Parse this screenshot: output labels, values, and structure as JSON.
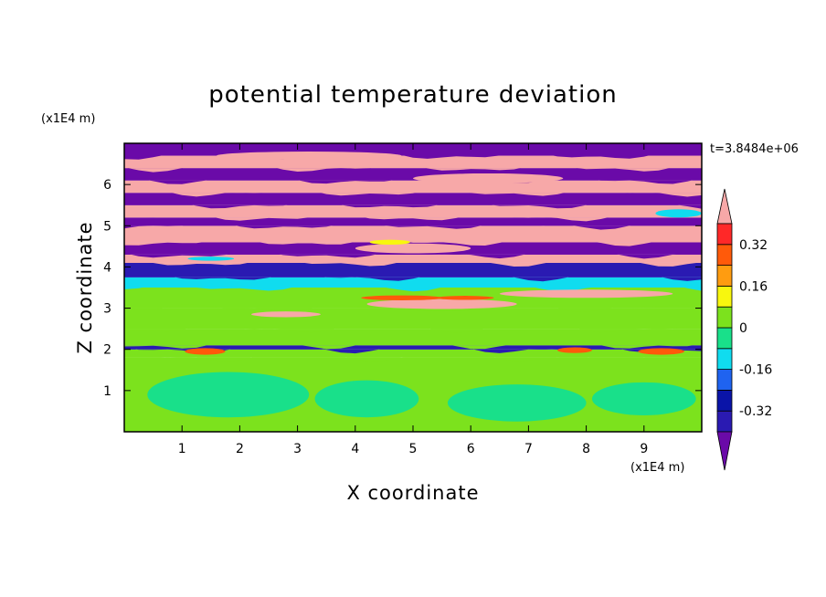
{
  "chart_data": {
    "type": "heatmap",
    "title": "potential temperature deviation",
    "xlabel": "X coordinate",
    "ylabel": "Z coordinate",
    "x_unit": "(x1E4 m)",
    "y_unit": "(x1E4 m)",
    "time_label": "t=3.8484e+06",
    "xlim": [
      0,
      10
    ],
    "ylim": [
      0,
      7
    ],
    "x_ticks": [
      "1",
      "2",
      "3",
      "4",
      "5",
      "6",
      "7",
      "8",
      "9"
    ],
    "y_ticks": [
      "1",
      "2",
      "3",
      "4",
      "5",
      "6"
    ],
    "colorbar": {
      "levels": [
        -0.4,
        -0.32,
        -0.24,
        -0.16,
        -0.08,
        0,
        0.08,
        0.16,
        0.24,
        0.32,
        0.4
      ],
      "tick_labels": [
        "0.32",
        "0.16",
        "0",
        "-0.16",
        "-0.32"
      ],
      "tick_values": [
        0.32,
        0.16,
        0,
        -0.16,
        -0.32
      ],
      "colors": [
        "#6a0aa8",
        "#2a1ab2",
        "#0a14a8",
        "#1f63f0",
        "#10dcef",
        "#19e08a",
        "#7ce21d",
        "#f8f70e",
        "#ff9c10",
        "#ff5a0a",
        "#ff2828",
        "#f7a8a8"
      ],
      "extend": "both"
    },
    "bands": [
      {
        "z0": 0.0,
        "z1": 1.8,
        "value": 0.02
      },
      {
        "z0": 1.8,
        "z1": 2.0,
        "value": 0.03
      },
      {
        "z0": 2.0,
        "z1": 2.1,
        "value": -0.35
      },
      {
        "z0": 2.1,
        "z1": 2.5,
        "value": 0.06
      },
      {
        "z0": 2.5,
        "z1": 3.0,
        "value": 0.05
      },
      {
        "z0": 3.0,
        "z1": 3.5,
        "value": 0.0
      },
      {
        "z0": 3.5,
        "z1": 3.75,
        "value": -0.1
      },
      {
        "z0": 3.75,
        "z1": 4.1,
        "value": -0.36
      },
      {
        "z0": 4.1,
        "z1": 4.3,
        "value": 0.45
      },
      {
        "z0": 4.3,
        "z1": 4.6,
        "value": -0.45
      },
      {
        "z0": 4.6,
        "z1": 5.0,
        "value": 0.45
      },
      {
        "z0": 5.0,
        "z1": 5.2,
        "value": -0.45
      },
      {
        "z0": 5.2,
        "z1": 5.5,
        "value": 0.45
      },
      {
        "z0": 5.5,
        "z1": 5.8,
        "value": -0.45
      },
      {
        "z0": 5.8,
        "z1": 6.1,
        "value": 0.45
      },
      {
        "z0": 6.1,
        "z1": 6.4,
        "value": -0.45
      },
      {
        "z0": 6.4,
        "z1": 6.7,
        "value": 0.45
      },
      {
        "z0": 6.7,
        "z1": 7.0,
        "value": -0.45
      }
    ],
    "blobs": [
      {
        "x": 1.8,
        "z": 0.9,
        "rx": 1.4,
        "rz": 0.55,
        "value": -0.02
      },
      {
        "x": 4.2,
        "z": 0.8,
        "rx": 0.9,
        "rz": 0.45,
        "value": -0.02
      },
      {
        "x": 6.8,
        "z": 0.7,
        "rx": 1.2,
        "rz": 0.45,
        "value": -0.02
      },
      {
        "x": 9.0,
        "z": 0.8,
        "rx": 0.9,
        "rz": 0.4,
        "value": -0.02
      },
      {
        "x": 5.5,
        "z": 3.1,
        "rx": 1.3,
        "rz": 0.12,
        "value": 0.45
      },
      {
        "x": 8.0,
        "z": 3.35,
        "rx": 1.5,
        "rz": 0.1,
        "value": 0.45
      },
      {
        "x": 2.8,
        "z": 2.85,
        "rx": 0.6,
        "rz": 0.07,
        "value": 0.45
      },
      {
        "x": 4.8,
        "z": 3.25,
        "rx": 0.7,
        "rz": 0.06,
        "value": 0.3
      },
      {
        "x": 9.6,
        "z": 5.3,
        "rx": 0.4,
        "rz": 0.1,
        "value": -0.12
      },
      {
        "x": 6.3,
        "z": 6.15,
        "rx": 1.3,
        "rz": 0.12,
        "value": 0.45
      },
      {
        "x": 3.2,
        "z": 6.7,
        "rx": 1.6,
        "rz": 0.1,
        "value": 0.45
      },
      {
        "x": 5.0,
        "z": 4.45,
        "rx": 1.0,
        "rz": 0.12,
        "value": 0.45
      }
    ],
    "hotspots": [
      {
        "x": 1.4,
        "z": 1.95,
        "rx": 0.35,
        "rz": 0.08,
        "value": 0.3
      },
      {
        "x": 7.8,
        "z": 1.98,
        "rx": 0.3,
        "rz": 0.07,
        "value": 0.3
      },
      {
        "x": 9.3,
        "z": 1.95,
        "rx": 0.4,
        "rz": 0.08,
        "value": 0.3
      },
      {
        "x": 4.6,
        "z": 4.6,
        "rx": 0.35,
        "rz": 0.06,
        "value": 0.1
      },
      {
        "x": 1.5,
        "z": 4.2,
        "rx": 0.4,
        "rz": 0.05,
        "value": -0.12
      },
      {
        "x": 5.9,
        "z": 3.25,
        "rx": 0.5,
        "rz": 0.05,
        "value": 0.3
      }
    ]
  }
}
